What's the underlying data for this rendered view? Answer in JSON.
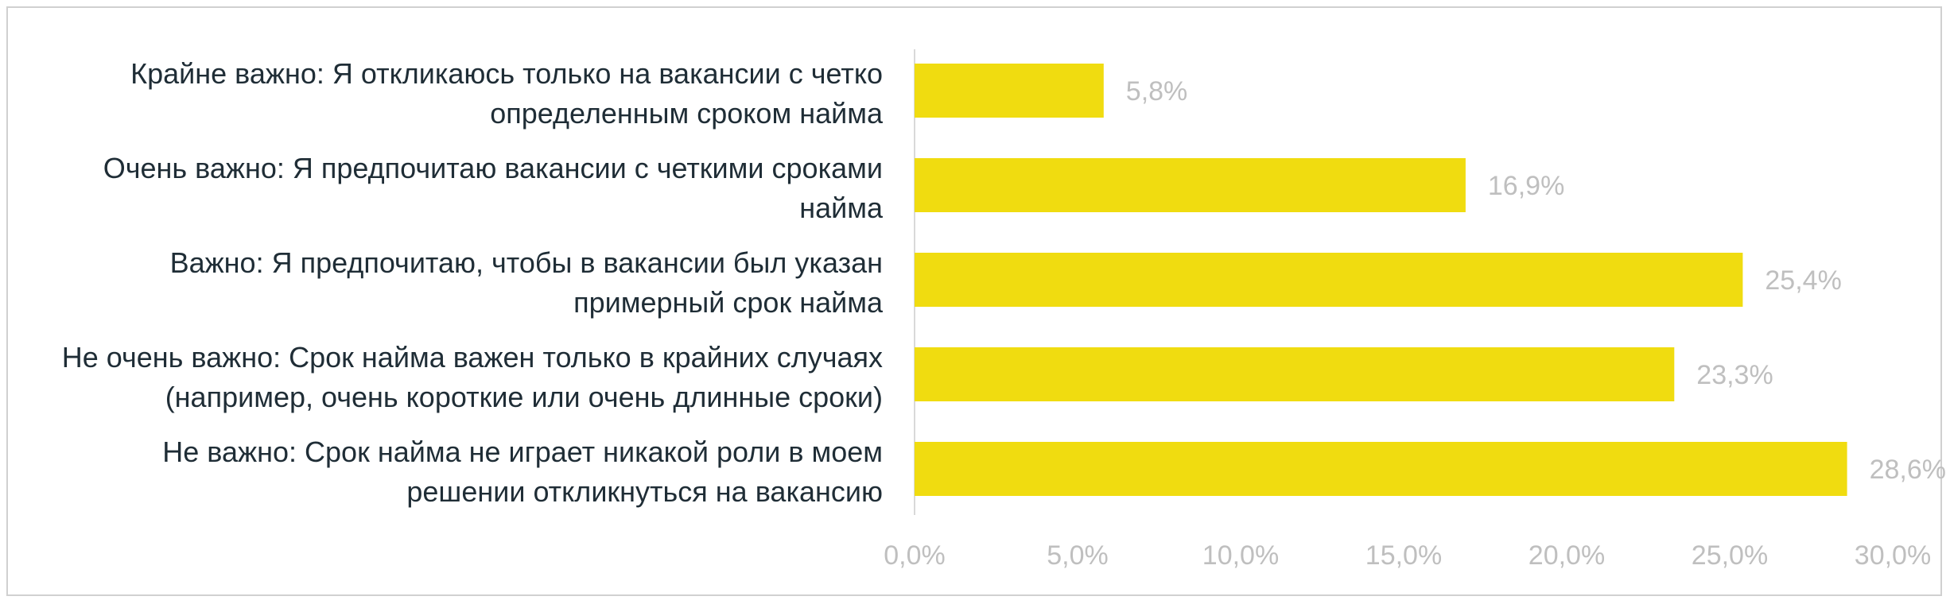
{
  "chart_data": {
    "type": "bar",
    "orientation": "horizontal",
    "categories": [
      [
        "Крайне важно: Я откликаюсь только на вакансии с четко",
        "определенным сроком найма"
      ],
      [
        "Очень важно: Я предпочитаю вакансии с четкими сроками",
        "найма"
      ],
      [
        "Важно: Я предпочитаю, чтобы в вакансии был указан",
        "примерный срок найма"
      ],
      [
        "Не очень важно: Срок найма важен только в крайних случаях",
        "(например, очень короткие или очень длинные сроки)"
      ],
      [
        "Не важно: Срок найма не играет никакой роли в моем",
        "решении откликнуться на вакансию"
      ]
    ],
    "values": [
      5.8,
      16.9,
      25.4,
      23.3,
      28.6
    ],
    "data_labels": [
      "5,8%",
      "16,9%",
      "25,4%",
      "23,3%",
      "28,6%"
    ],
    "x_ticks": [
      "0,0%",
      "5,0%",
      "10,0%",
      "15,0%",
      "20,0%",
      "25,0%",
      "30,0%"
    ],
    "xlim": [
      0,
      30
    ],
    "grid": false,
    "legend": "none",
    "bar_color": "#f0dc10",
    "axis_color": "#d9d9d9"
  }
}
